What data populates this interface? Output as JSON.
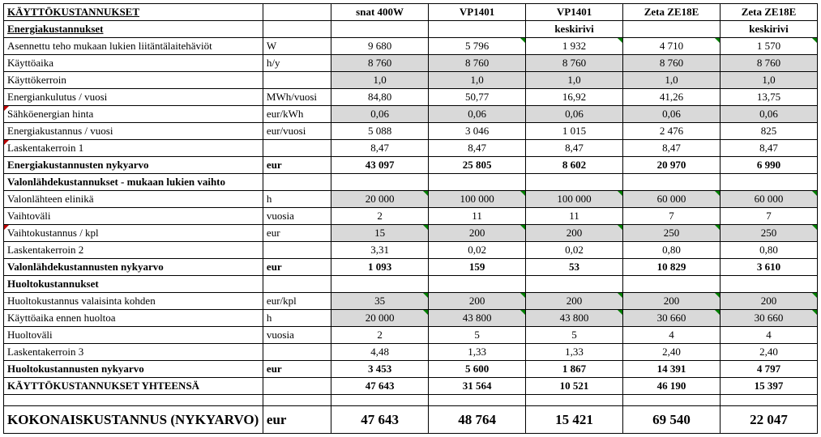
{
  "colors": {
    "shaded": "#d9d9d9",
    "border": "#000000",
    "text": "#000000",
    "bg": "#ffffff",
    "triangle_green": "#008000",
    "triangle_red": "#c00000"
  },
  "fonts": {
    "family": "Times New Roman",
    "base_size_pt": 10,
    "heading_size_pt": 13
  },
  "headers": {
    "c1": "snat 400W",
    "c2": "VP1401",
    "c3": "VP1401",
    "c4": "Zeta ZE18E",
    "c5": "Zeta ZE18E",
    "sub3": "keskirivi",
    "sub5": "keskirivi"
  },
  "section_titles": {
    "operating": "KÄYTTÖKUSTANNUKSET",
    "energy": "Energiakustannukset",
    "lightsource": "Valonlähdekustannukset - mukaan lukien vaihto",
    "maintenance": "Huoltokustannukset",
    "operating_total": "KÄYTTÖKUSTANNUKSET YHTEENSÄ",
    "grand_total": "KOKONAISKUSTANNUS (NYKYARVO)"
  },
  "rows": {
    "installed_power": {
      "label": "Asennettu teho mukaan lukien liitäntälaitehäviöt",
      "unit": "W",
      "v": [
        "9 680",
        "5 796",
        "1 932",
        "4 710",
        "1 570"
      ],
      "shaded": false,
      "tri": [
        "",
        "g",
        "g",
        "g",
        "g"
      ]
    },
    "operating_hours": {
      "label": "Käyttöaika",
      "unit": "h/y",
      "v": [
        "8 760",
        "8 760",
        "8 760",
        "8 760",
        "8 760"
      ],
      "shaded": true
    },
    "usage_factor": {
      "label": "Käyttökerroin",
      "unit": "",
      "v": [
        "1,0",
        "1,0",
        "1,0",
        "1,0",
        "1,0"
      ],
      "shaded": true
    },
    "energy_consumption": {
      "label": "Energiankulutus / vuosi",
      "unit": "MWh/vuosi",
      "v": [
        "84,80",
        "50,77",
        "16,92",
        "41,26",
        "13,75"
      ],
      "shaded": false
    },
    "energy_price": {
      "label": "Sähköenergian hinta",
      "unit": "eur/kWh",
      "v": [
        "0,06",
        "0,06",
        "0,06",
        "0,06",
        "0,06"
      ],
      "shaded": true,
      "tri_label": "r"
    },
    "energy_cost_year": {
      "label": "Energiakustannus / vuosi",
      "unit": "eur/vuosi",
      "v": [
        "5 088",
        "3 046",
        "1 015",
        "2 476",
        "825"
      ],
      "shaded": false
    },
    "calc_factor1": {
      "label": "Laskentakerroin 1",
      "unit": "",
      "v": [
        "8,47",
        "8,47",
        "8,47",
        "8,47",
        "8,47"
      ],
      "shaded": false,
      "tri_label": "r"
    },
    "energy_npv": {
      "label": "Energiakustannusten nykyarvo",
      "unit": "eur",
      "v": [
        "43 097",
        "25 805",
        "8 602",
        "20 970",
        "6 990"
      ],
      "shaded": false,
      "bold": true
    },
    "lamp_life": {
      "label": "Valonlähteen elinikä",
      "unit": "h",
      "v": [
        "20 000",
        "100 000",
        "100 000",
        "60 000",
        "60 000"
      ],
      "shaded": true,
      "tri": [
        "g",
        "g",
        "g",
        "g",
        "g"
      ]
    },
    "replace_interval": {
      "label": "Vaihtoväli",
      "unit": "vuosia",
      "v": [
        "2",
        "11",
        "11",
        "7",
        "7"
      ],
      "shaded": false
    },
    "replace_cost": {
      "label": "Vaihtokustannus / kpl",
      "unit": "eur",
      "v": [
        "15",
        "200",
        "200",
        "250",
        "250"
      ],
      "shaded": true,
      "tri": [
        "g",
        "g",
        "g",
        "g",
        "g"
      ],
      "tri_label": "r"
    },
    "calc_factor2": {
      "label": "Laskentakerroin 2",
      "unit": "",
      "v": [
        "3,31",
        "0,02",
        "0,02",
        "0,80",
        "0,80"
      ],
      "shaded": false
    },
    "lightsource_npv": {
      "label": "Valonlähdekustannusten nykyarvo",
      "unit": "eur",
      "v": [
        "1 093",
        "159",
        "53",
        "10 829",
        "3 610"
      ],
      "shaded": false,
      "bold": true
    },
    "maint_cost_unit": {
      "label": "Huoltokustannus valaisinta kohden",
      "unit": "eur/kpl",
      "v": [
        "35",
        "200",
        "200",
        "200",
        "200"
      ],
      "shaded": true,
      "tri": [
        "g",
        "g",
        "g",
        "g",
        "g"
      ]
    },
    "hours_before_maint": {
      "label": "Käyttöaika ennen huoltoa",
      "unit": "h",
      "v": [
        "20 000",
        "43 800",
        "43 800",
        "30 660",
        "30 660"
      ],
      "shaded": true,
      "tri": [
        "g",
        "g",
        "g",
        "g",
        "g"
      ]
    },
    "maint_interval": {
      "label": "Huoltoväli",
      "unit": "vuosia",
      "v": [
        "2",
        "5",
        "5",
        "4",
        "4"
      ],
      "shaded": false
    },
    "calc_factor3": {
      "label": "Laskentakerroin 3",
      "unit": "",
      "v": [
        "4,48",
        "1,33",
        "1,33",
        "2,40",
        "2,40"
      ],
      "shaded": false
    },
    "maint_npv": {
      "label": "Huoltokustannusten nykyarvo",
      "unit": "eur",
      "v": [
        "3 453",
        "5 600",
        "1 867",
        "14 391",
        "4 797"
      ],
      "shaded": false,
      "bold": true
    },
    "operating_total": {
      "label": "",
      "unit": "",
      "v": [
        "47 643",
        "31 564",
        "10 521",
        "46 190",
        "15 397"
      ],
      "shaded": false,
      "bold": true
    },
    "grand_total": {
      "label": "",
      "unit": "eur",
      "v": [
        "47 643",
        "48 764",
        "15 421",
        "69 540",
        "22 047"
      ],
      "shaded": false,
      "bold": true
    }
  }
}
